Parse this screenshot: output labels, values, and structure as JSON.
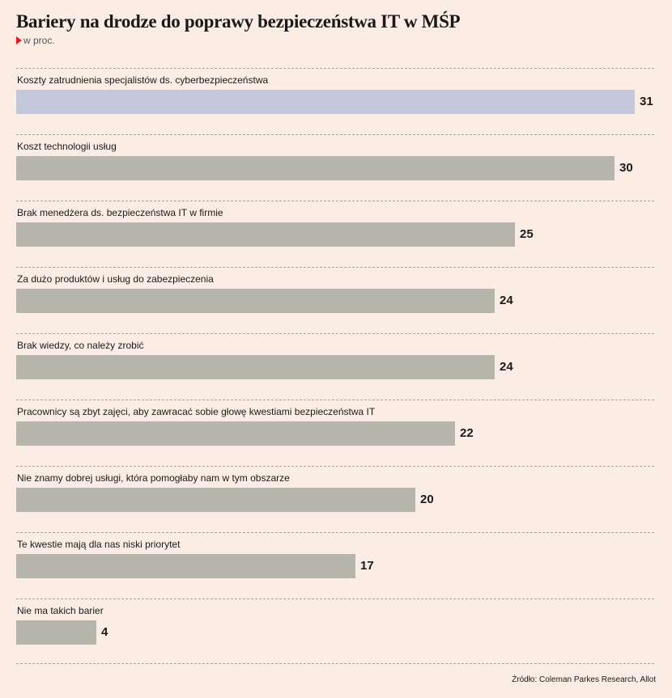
{
  "header": {
    "title": "Bariery na drodze do poprawy bezpieczeństwa IT w MŚP",
    "unit": "w proc."
  },
  "colors": {
    "background": "#fbede3",
    "bar": "#b5b5ab",
    "bar_highlight": "#c3c8da",
    "unit_marker": "#e11b22"
  },
  "chart_data": {
    "type": "bar",
    "orientation": "horizontal",
    "categories": [
      "Koszty zatrudnienia specjalistów ds. cyberbezpieczeństwa",
      "Koszt technologii usług",
      "Brak menedżera ds. bezpieczeństwa IT w firmie",
      "Za dużo produktów i usług do zabezpieczenia",
      "Brak wiedzy, co należy zrobić",
      "Pracownicy są zbyt zajęci, aby zawracać sobie głowę kwestiami bezpieczeństwa IT",
      "Nie znamy dobrej usługi, która pomogłaby nam w tym obszarze",
      "Te kwestie mają dla nas niski priorytet",
      "Nie ma takich barier"
    ],
    "values": [
      31,
      30,
      25,
      24,
      24,
      22,
      20,
      17,
      4
    ],
    "highlighted_index": 0,
    "title": "Bariery na drodze do poprawy bezpieczeństwa IT w MŚP",
    "unit": "w proc.",
    "xlim": [
      0,
      31
    ],
    "data_labels": true,
    "grid": false
  },
  "footer": {
    "source": "Źródło: Coleman Parkes Research, Allot"
  }
}
